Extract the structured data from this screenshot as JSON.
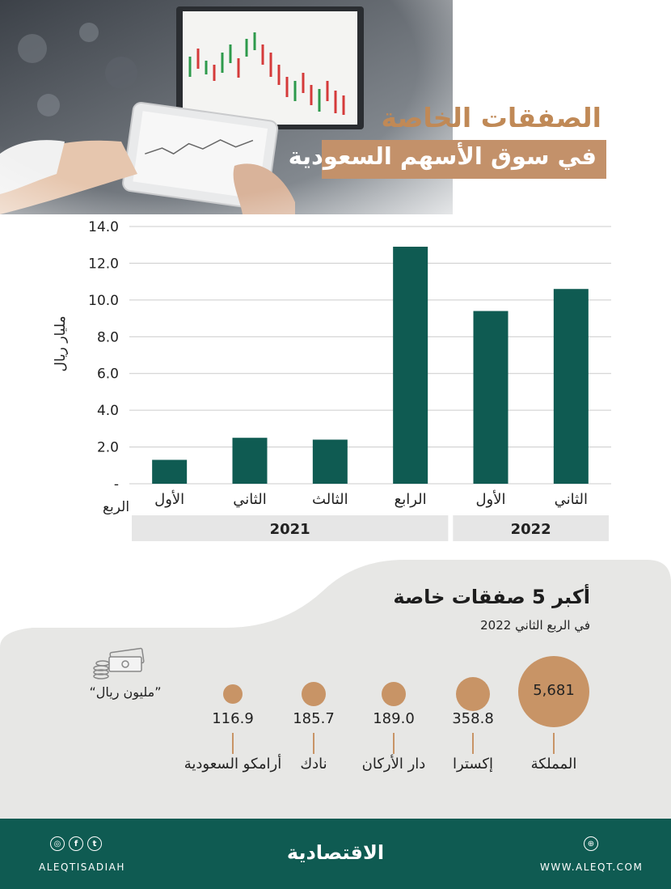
{
  "header": {
    "title_line1": "الصفقات الخاصة",
    "title_line2": "في سوق الأسهم السعودية"
  },
  "colors": {
    "bar": "#0f5b52",
    "accent": "#c3916a",
    "grid": "#cccccc",
    "year_band": "#e6e6e6",
    "footer": "#0f5b52",
    "panel": "#e7e7e5"
  },
  "chart_data": {
    "type": "bar",
    "title": "",
    "xlabel": "الربع",
    "ylabel": "مليار ريال",
    "ylim": [
      0,
      14
    ],
    "yticks": [
      "-",
      "2.0",
      "4.0",
      "6.0",
      "8.0",
      "10.0",
      "12.0",
      "14.0"
    ],
    "categories": [
      "الأول",
      "الثاني",
      "الثالث",
      "الرابع",
      "الأول",
      "الثاني"
    ],
    "values": [
      1.3,
      2.5,
      2.4,
      12.9,
      9.4,
      10.6
    ],
    "year_groups": [
      {
        "label": "2021",
        "span": 4
      },
      {
        "label": "2022",
        "span": 2
      }
    ],
    "grid": true
  },
  "deals": {
    "title": "أكبر 5 صفقات خاصة",
    "subtitle": "في الربع الثاني 2022",
    "unit": "”مليون ريال“",
    "unit_icon": "money-stack-icon",
    "items": [
      {
        "name": "المملكة",
        "value": "5,681",
        "amount": 5681
      },
      {
        "name": "إكسترا",
        "value": "358.8",
        "amount": 358.8
      },
      {
        "name": "دار الأركان",
        "value": "189.0",
        "amount": 189.0
      },
      {
        "name": "نادك",
        "value": "185.7",
        "amount": 185.7
      },
      {
        "name": "أرامكو السعودية",
        "value": "116.9",
        "amount": 116.9
      }
    ]
  },
  "footer": {
    "handle": "ALEQTISADIAH",
    "logo": "الاقتصادية",
    "url": "WWW.ALEQT.COM",
    "social_icons": [
      "instagram-icon",
      "facebook-icon",
      "twitter-icon"
    ],
    "web_icon": "web-icon"
  }
}
